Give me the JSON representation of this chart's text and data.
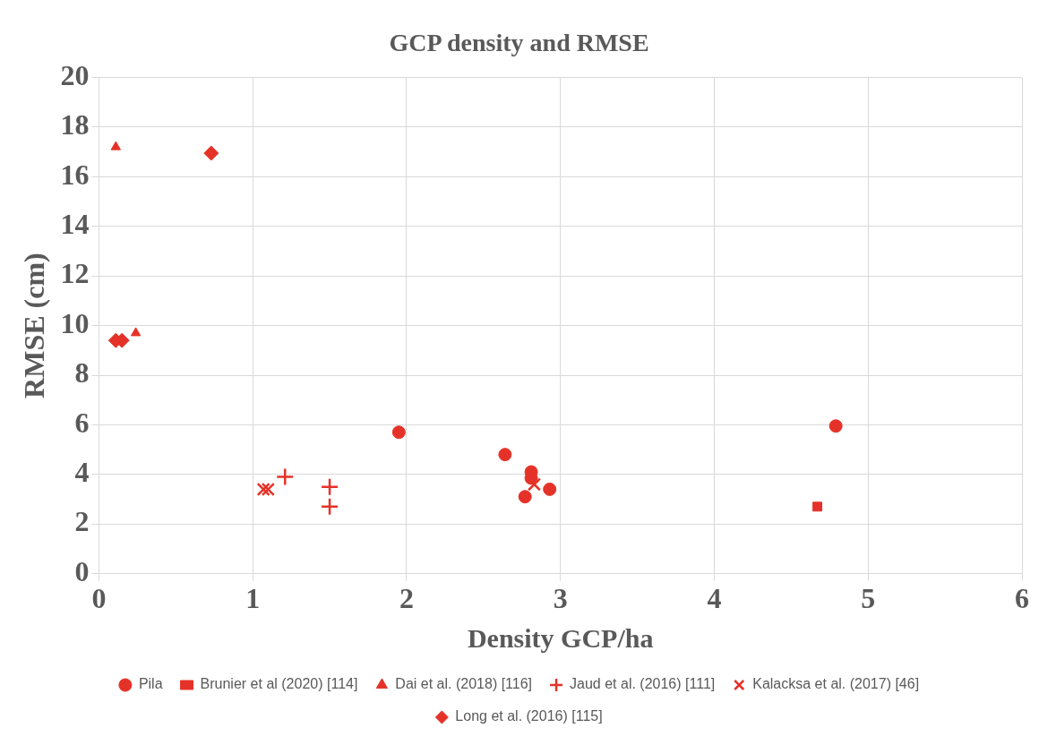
{
  "chart_data": {
    "type": "scatter",
    "title": "GCP density and RMSE",
    "xlabel": "Density GCP/ha",
    "ylabel": "RMSE (cm)",
    "xlim": [
      0,
      6
    ],
    "xticks": [
      0,
      1,
      2,
      3,
      4,
      5,
      6
    ],
    "ylim": [
      0,
      20
    ],
    "yticks": [
      0,
      2,
      4,
      6,
      8,
      10,
      12,
      14,
      16,
      18,
      20
    ],
    "grid": true,
    "legend": "bottom",
    "series": [
      {
        "name": "Pila",
        "color": "#e53228",
        "marker": "circle",
        "x": [
          1.95,
          2.64,
          2.81,
          2.81,
          2.77,
          2.93,
          4.79
        ],
        "values": [
          5.7,
          4.8,
          4.1,
          3.85,
          3.1,
          3.4,
          5.95
        ]
      },
      {
        "name": "Brunier et al (2020) [114]",
        "color": "#e53228",
        "marker": "square",
        "x": [
          4.67
        ],
        "values": [
          2.7
        ]
      },
      {
        "name": "Dai et al. (2018) [116]",
        "color": "#e53228",
        "marker": "triangle",
        "x": [
          0.11,
          0.24
        ],
        "values": [
          17.2,
          9.7
        ]
      },
      {
        "name": "Jaud et al. (2016) [111]",
        "color": "#e53228",
        "marker": "plus",
        "x": [
          1.21,
          1.5,
          1.5
        ],
        "values": [
          3.9,
          3.5,
          2.7
        ]
      },
      {
        "name": "Kalacksa et al. (2017) [46]",
        "color": "#e53228",
        "marker": "cross",
        "x": [
          1.07,
          1.1,
          2.83
        ],
        "values": [
          3.4,
          3.4,
          3.6
        ]
      },
      {
        "name": "Long et al. (2016) [115]",
        "color": "#e53228",
        "marker": "diamond",
        "x": [
          0.73,
          0.11,
          0.15
        ],
        "values": [
          16.95,
          9.4,
          9.4
        ]
      }
    ]
  }
}
